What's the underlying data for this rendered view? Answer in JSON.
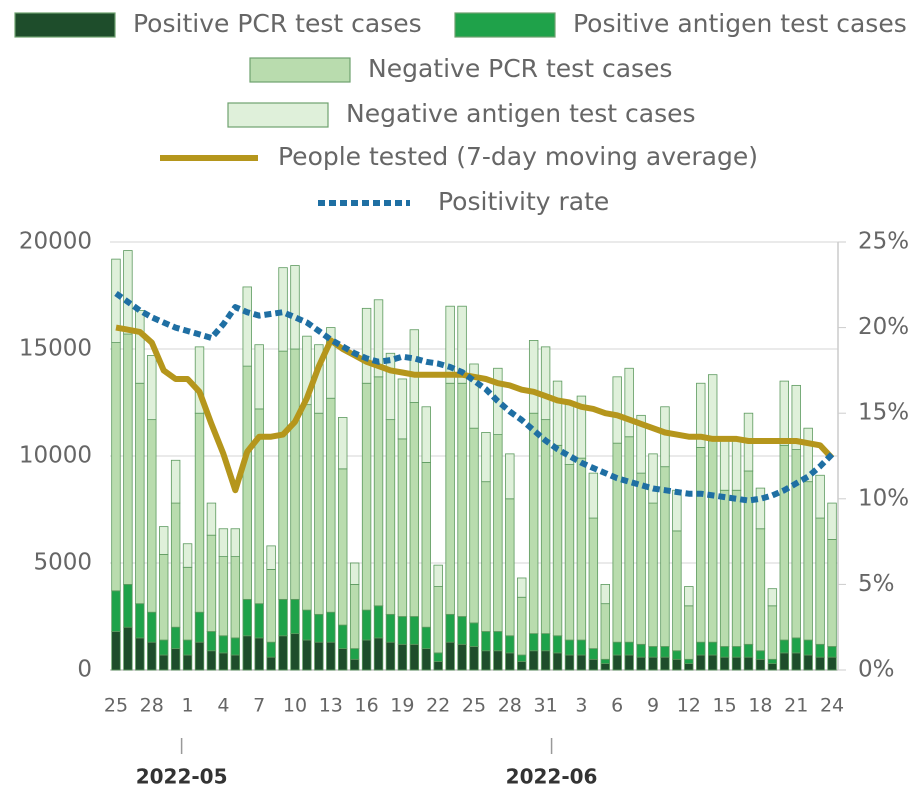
{
  "chart_data": {
    "type": "bar",
    "stacked": true,
    "categories": [
      "25",
      null,
      null,
      "28",
      null,
      null,
      "1",
      null,
      null,
      "4",
      null,
      null,
      "7",
      null,
      null,
      "10",
      null,
      null,
      "13",
      null,
      null,
      "16",
      null,
      null,
      "19",
      null,
      null,
      "22",
      null,
      null,
      "25",
      null,
      null,
      "28",
      null,
      null,
      "31",
      null,
      null,
      "3",
      null,
      null,
      "6",
      null,
      null,
      "9",
      null,
      null,
      "12",
      null,
      null,
      "15",
      null,
      null,
      "18",
      null,
      null,
      "21",
      null,
      null,
      "24"
    ],
    "month_labels": [
      {
        "label": "2022-05",
        "at": 6
      },
      {
        "label": "2022-06",
        "at": 37
      }
    ],
    "series": [
      {
        "name": "Positive PCR test cases",
        "type": "bar",
        "color": "#1e4d2b",
        "values": [
          1800,
          2000,
          1500,
          1300,
          700,
          1000,
          700,
          1300,
          900,
          800,
          700,
          1600,
          1500,
          600,
          1600,
          1700,
          1400,
          1300,
          1300,
          1000,
          500,
          1400,
          1500,
          1300,
          1200,
          1200,
          1000,
          400,
          1300,
          1200,
          1100,
          900,
          900,
          800,
          400,
          900,
          900,
          800,
          700,
          700,
          500,
          300,
          700,
          700,
          600,
          600,
          600,
          500,
          300,
          700,
          700,
          600,
          600,
          600,
          500,
          300,
          800,
          800,
          700,
          600,
          600
        ]
      },
      {
        "name": "Positive antigen test cases",
        "type": "bar",
        "color": "#1fa24a",
        "values": [
          1900,
          2000,
          1600,
          1400,
          700,
          1000,
          700,
          1400,
          900,
          800,
          800,
          1700,
          1600,
          700,
          1700,
          1600,
          1400,
          1300,
          1400,
          1100,
          500,
          1400,
          1500,
          1300,
          1300,
          1300,
          1000,
          400,
          1300,
          1300,
          1100,
          900,
          900,
          800,
          300,
          800,
          800,
          800,
          700,
          700,
          500,
          200,
          600,
          600,
          600,
          500,
          500,
          400,
          200,
          600,
          600,
          500,
          500,
          600,
          400,
          200,
          600,
          700,
          700,
          600,
          500
        ]
      },
      {
        "name": "Negative PCR test cases",
        "type": "bar",
        "color": "#b9dcae",
        "values": [
          11600,
          11700,
          10300,
          9000,
          4000,
          5800,
          3400,
          9300,
          4500,
          3700,
          3800,
          10900,
          9100,
          3400,
          11600,
          11700,
          9600,
          9400,
          10000,
          7300,
          3000,
          10600,
          10700,
          9100,
          8300,
          10000,
          7700,
          3100,
          10800,
          10900,
          9100,
          7000,
          9200,
          6400,
          2700,
          10300,
          10000,
          8900,
          8200,
          8500,
          6100,
          2600,
          9300,
          9600,
          8000,
          6700,
          8400,
          5600,
          2500,
          9100,
          9400,
          7300,
          7300,
          8100,
          5700,
          2500,
          9100,
          8800,
          7400,
          5900,
          5000
        ]
      },
      {
        "name": "Negative antigen test cases",
        "type": "bar",
        "color": "#dff0da",
        "values": [
          3900,
          3900,
          3400,
          3000,
          1300,
          2000,
          1100,
          3100,
          1500,
          1300,
          1300,
          3700,
          3000,
          1100,
          3900,
          3900,
          3200,
          3200,
          3300,
          2400,
          1000,
          3500,
          3600,
          3100,
          2800,
          3400,
          2600,
          1000,
          3600,
          3600,
          3000,
          2300,
          3100,
          2100,
          900,
          3400,
          3400,
          3000,
          2800,
          2900,
          2100,
          900,
          3100,
          3200,
          2700,
          2300,
          2800,
          1900,
          900,
          3000,
          3100,
          2400,
          2400,
          2700,
          1900,
          800,
          3000,
          3000,
          2500,
          2000,
          1700
        ]
      },
      {
        "name": "People tested (7-day moving average)",
        "type": "line",
        "color": "#b5961c",
        "values": [
          16000,
          15900,
          15800,
          15300,
          14000,
          13600,
          13600,
          13000,
          11500,
          10100,
          8400,
          10200,
          10900,
          10900,
          11000,
          11600,
          12700,
          14200,
          15400,
          15000,
          14700,
          14400,
          14200,
          14000,
          13900,
          13800,
          13800,
          13800,
          13800,
          13800,
          13700,
          13600,
          13400,
          13300,
          13100,
          13000,
          12800,
          12600,
          12500,
          12300,
          12200,
          12000,
          11900,
          11700,
          11500,
          11300,
          11100,
          11000,
          10900,
          10900,
          10800,
          10800,
          10800,
          10700,
          10700,
          10700,
          10700,
          10700,
          10600,
          10500,
          9900
        ]
      },
      {
        "name": "Positivity rate",
        "type": "line",
        "axis": "y2",
        "line_style": "dotted",
        "color": "#1f6fa3",
        "values": [
          22.0,
          21.5,
          21.0,
          20.6,
          20.3,
          20.0,
          19.8,
          19.6,
          19.4,
          20.2,
          21.2,
          20.9,
          20.7,
          20.8,
          20.9,
          20.6,
          20.3,
          19.8,
          19.3,
          18.9,
          18.5,
          18.2,
          18.0,
          18.1,
          18.3,
          18.2,
          18.0,
          17.9,
          17.7,
          17.4,
          16.9,
          16.4,
          15.7,
          15.1,
          14.6,
          14.0,
          13.4,
          12.9,
          12.5,
          12.1,
          11.8,
          11.5,
          11.2,
          11.0,
          10.8,
          10.6,
          10.5,
          10.4,
          10.3,
          10.3,
          10.2,
          10.1,
          10.0,
          9.9,
          10.0,
          10.2,
          10.5,
          10.9,
          11.3,
          11.9,
          12.6
        ]
      }
    ],
    "ylim": [
      0,
      20000
    ],
    "yticks": [
      0,
      5000,
      10000,
      15000,
      20000
    ],
    "y2lim": [
      0,
      25
    ],
    "y2ticks": [
      {
        "value": 0,
        "label": "0%"
      },
      {
        "value": 5,
        "label": "5%"
      },
      {
        "value": 10,
        "label": "10%"
      },
      {
        "value": 15,
        "label": "15%"
      },
      {
        "value": 20,
        "label": "20%"
      },
      {
        "value": 25,
        "label": "25%"
      }
    ],
    "grid": true,
    "legend": "top"
  }
}
